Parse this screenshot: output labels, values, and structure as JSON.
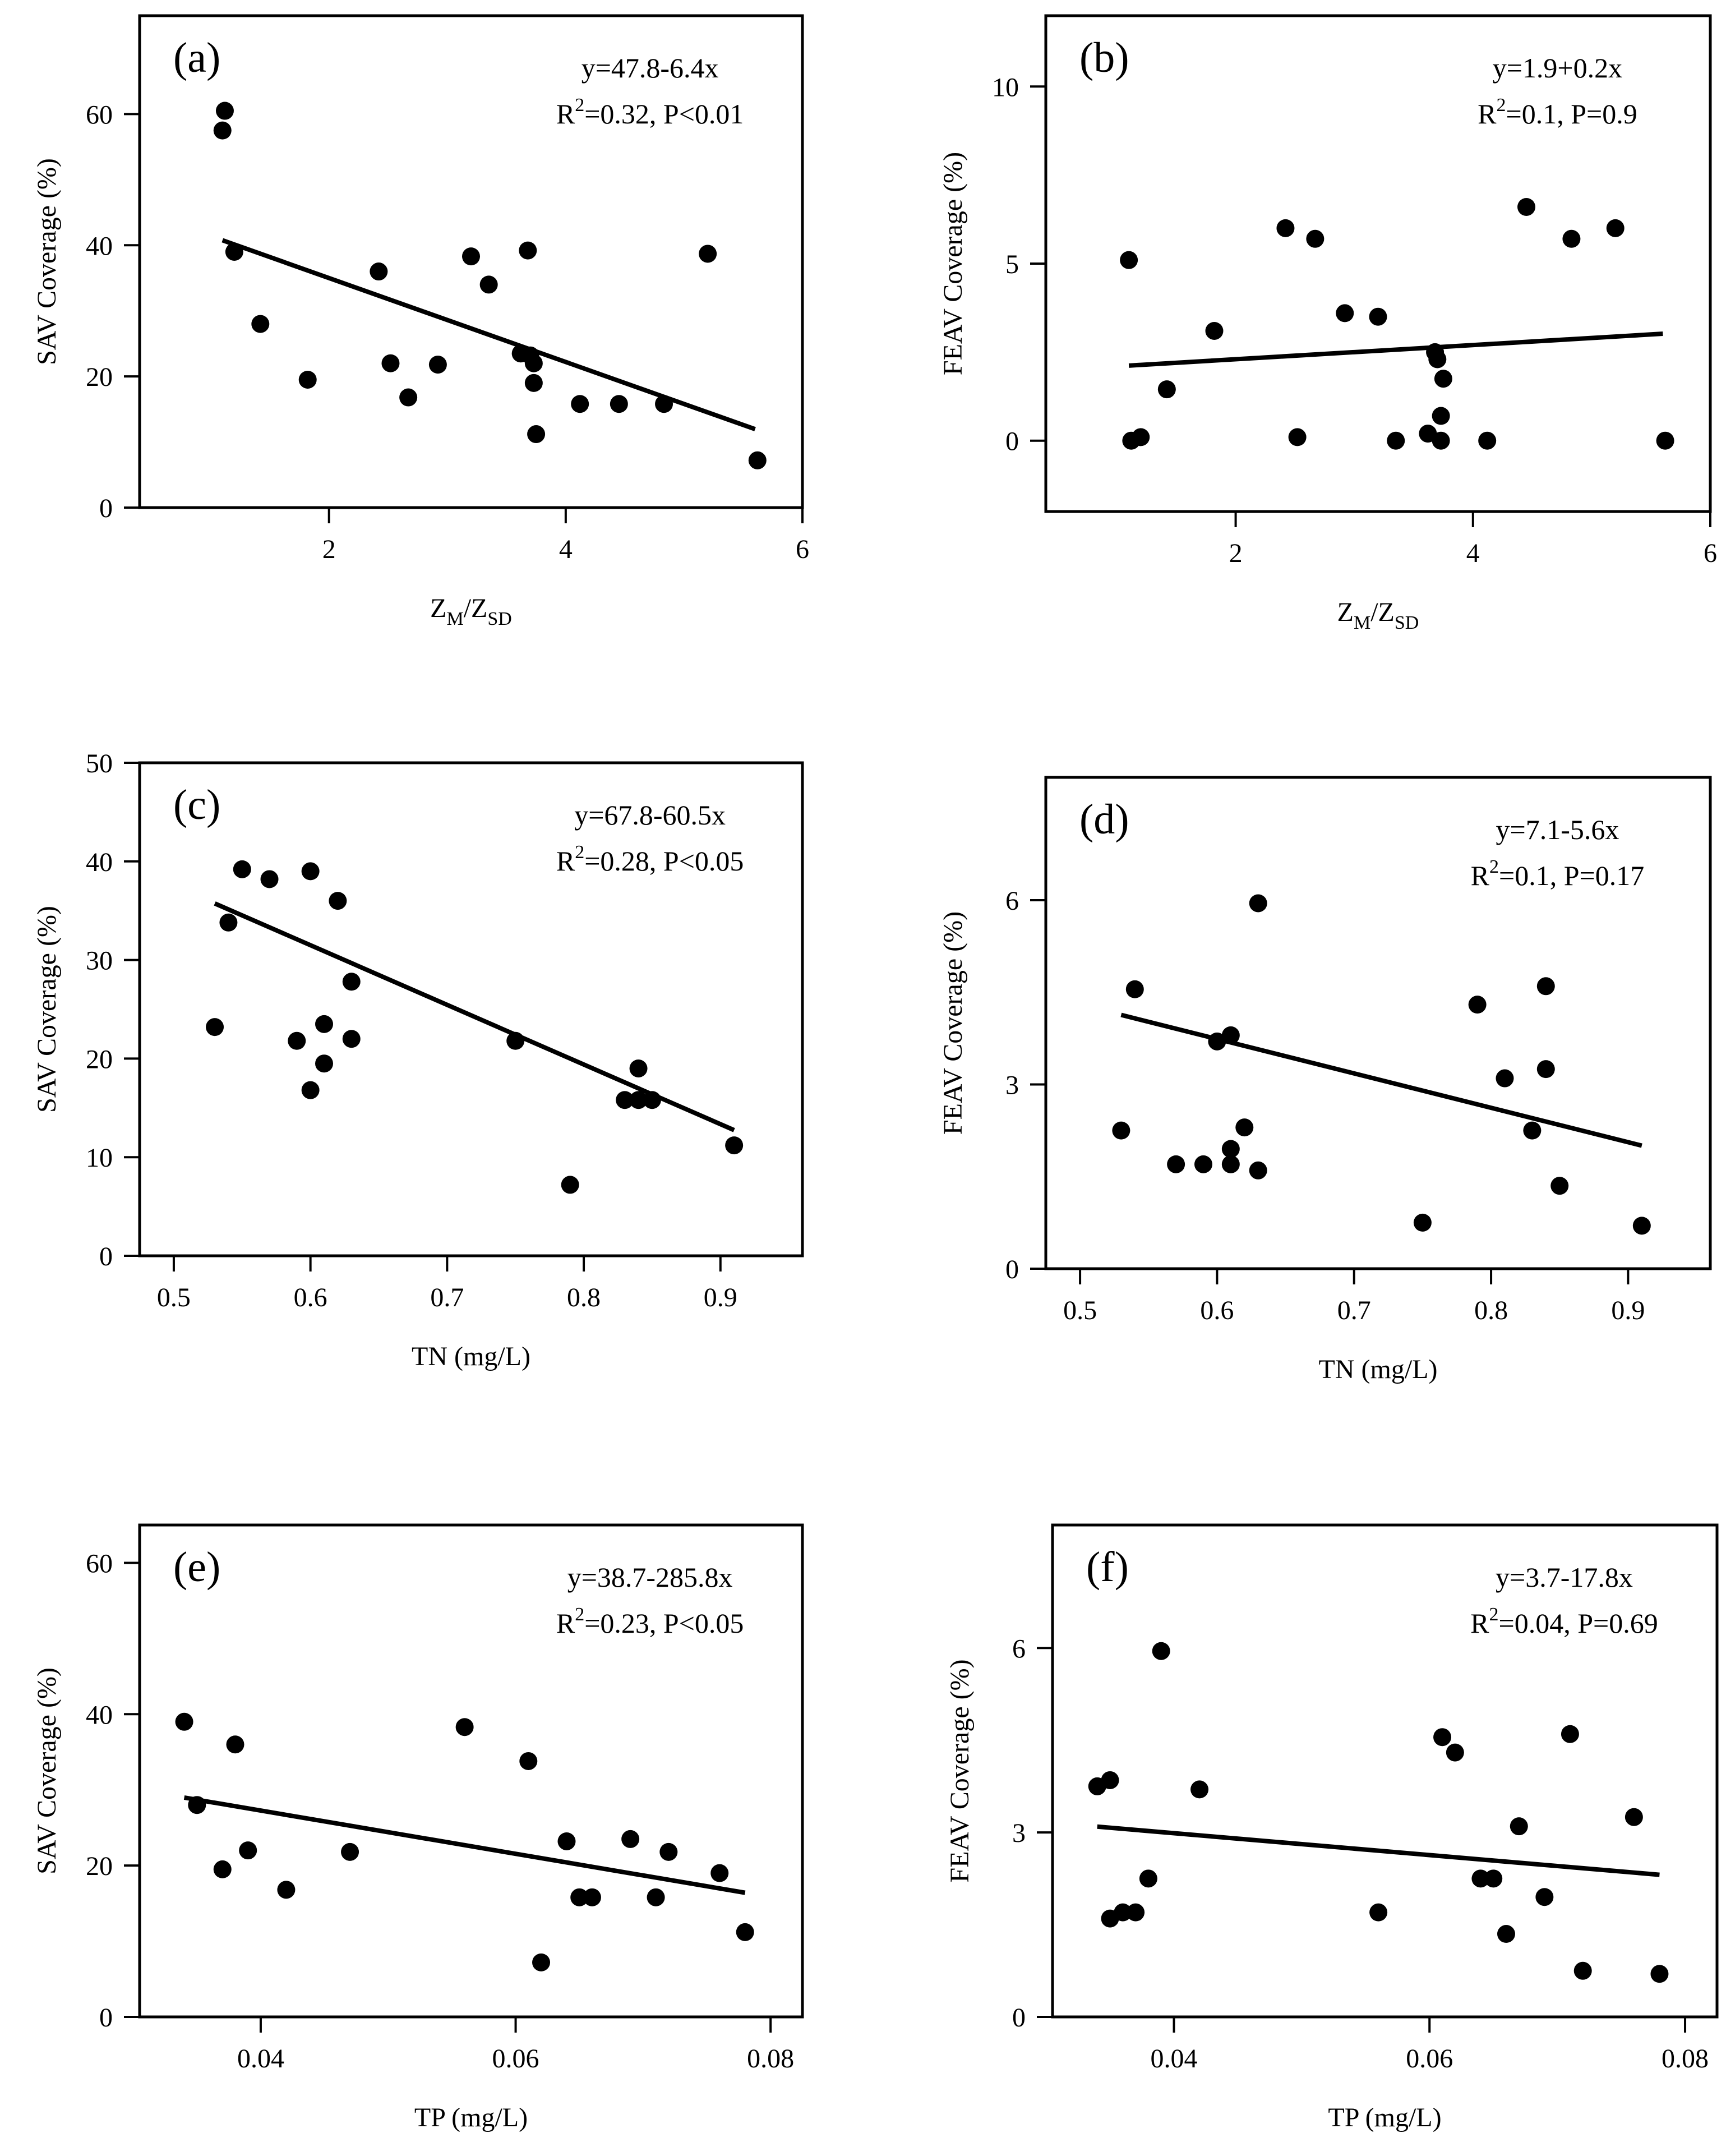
{
  "chart_data": [
    {
      "panel": "(a)",
      "type": "scatter",
      "xlabel": "Z_M/Z_SD",
      "ylabel": "SAV Coverage (%)",
      "xlim": [
        0.4,
        6.0
      ],
      "ylim": [
        0,
        75
      ],
      "xticks": [
        2,
        4,
        6
      ],
      "xticklabels": [
        "2",
        "4",
        "6"
      ],
      "yticks": [
        0,
        20,
        40,
        60
      ],
      "yticklabels": [
        "0",
        "20",
        "40",
        "60"
      ],
      "equation": "y=47.8-6.4x",
      "stats_r": "R",
      "stats_sup": "2",
      "stats_rest": "=0.32, P<0.01",
      "fit": {
        "intercept": 47.8,
        "slope": -6.4,
        "x_range": [
          1.1,
          5.6
        ]
      },
      "x": [
        1.1,
        1.12,
        1.2,
        1.42,
        1.82,
        2.42,
        2.52,
        2.67,
        2.92,
        3.2,
        3.35,
        3.62,
        3.68,
        3.7,
        3.73,
        3.73,
        3.75,
        4.12,
        4.45,
        4.83,
        5.2,
        5.62
      ],
      "y": [
        57.5,
        60.5,
        39.0,
        28.0,
        19.5,
        36.0,
        22.0,
        16.8,
        21.8,
        38.3,
        34.0,
        23.5,
        39.2,
        23.2,
        22.0,
        19.0,
        11.2,
        15.8,
        15.8,
        15.8,
        38.7,
        7.2
      ]
    },
    {
      "panel": "(b)",
      "type": "scatter",
      "xlabel": "Z_M/Z_SD",
      "ylabel": "FEAV Coverage (%)",
      "xlim": [
        0.4,
        6.0
      ],
      "ylim": [
        -2.0,
        12.0
      ],
      "xticks": [
        2,
        4,
        6
      ],
      "xticklabels": [
        "2",
        "4",
        "6"
      ],
      "yticks": [
        0,
        5,
        10
      ],
      "yticklabels": [
        "0",
        "5",
        "10"
      ],
      "equation": "y=1.9+0.2x",
      "stats_r": "R",
      "stats_sup": "2",
      "stats_rest": "=0.1, P=0.9",
      "fit": {
        "intercept": 1.9,
        "slope": 0.2,
        "x_range": [
          1.1,
          5.6
        ]
      },
      "x": [
        1.1,
        1.12,
        1.2,
        1.42,
        1.82,
        2.42,
        2.52,
        2.67,
        2.92,
        3.2,
        3.35,
        3.62,
        3.68,
        3.7,
        3.73,
        3.73,
        3.75,
        4.12,
        4.45,
        4.83,
        5.2,
        5.62
      ],
      "y": [
        5.1,
        0.0,
        0.1,
        1.45,
        3.1,
        6.0,
        0.1,
        5.7,
        3.6,
        3.5,
        0.0,
        0.2,
        2.5,
        2.3,
        0.7,
        0.0,
        1.75,
        0.0,
        6.6,
        5.7,
        6.0,
        0.0
      ]
    },
    {
      "panel": "(c)",
      "type": "scatter",
      "xlabel": "TN (mg/L)",
      "ylabel": "SAV Coverage (%)",
      "xlim": [
        0.475,
        0.96
      ],
      "ylim": [
        0,
        50
      ],
      "xticks": [
        0.5,
        0.6,
        0.7,
        0.8,
        0.9
      ],
      "xticklabels": [
        "0.5",
        "0.6",
        "0.7",
        "0.8",
        "0.9"
      ],
      "yticks": [
        0,
        10,
        20,
        30,
        40,
        50
      ],
      "yticklabels": [
        "0",
        "10",
        "20",
        "30",
        "40",
        "50"
      ],
      "equation": "y=67.8-60.5x",
      "stats_r": "R",
      "stats_sup": "2",
      "stats_rest": "=0.28, P<0.05",
      "fit": {
        "intercept": 67.8,
        "slope": -60.5,
        "x_range": [
          0.53,
          0.91
        ]
      },
      "x": [
        0.53,
        0.54,
        0.55,
        0.57,
        0.59,
        0.6,
        0.6,
        0.61,
        0.61,
        0.62,
        0.63,
        0.63,
        0.75,
        0.79,
        0.83,
        0.84,
        0.84,
        0.85,
        0.91
      ],
      "y": [
        23.2,
        33.8,
        39.2,
        38.2,
        21.8,
        39.0,
        16.8,
        23.5,
        19.5,
        36.0,
        27.8,
        22.0,
        21.8,
        7.2,
        15.8,
        19.0,
        15.8,
        15.8,
        11.2
      ]
    },
    {
      "panel": "(d)",
      "type": "scatter",
      "xlabel": "TN (mg/L)",
      "ylabel": "FEAV Coverage (%)",
      "xlim": [
        0.475,
        0.96
      ],
      "ylim": [
        0,
        8.0
      ],
      "xticks": [
        0.5,
        0.6,
        0.7,
        0.8,
        0.9
      ],
      "xticklabels": [
        "0.5",
        "0.6",
        "0.7",
        "0.8",
        "0.9"
      ],
      "yticks": [
        0,
        3,
        6
      ],
      "yticklabels": [
        "0",
        "3",
        "6"
      ],
      "equation": "y=7.1-5.6x",
      "stats_r": "R",
      "stats_sup": "2",
      "stats_rest": "=0.1, P=0.17",
      "fit": {
        "intercept": 7.1,
        "slope": -5.6,
        "x_range": [
          0.53,
          0.91
        ]
      },
      "x": [
        0.53,
        0.54,
        0.57,
        0.59,
        0.6,
        0.61,
        0.61,
        0.61,
        0.62,
        0.63,
        0.63,
        0.75,
        0.79,
        0.81,
        0.83,
        0.84,
        0.84,
        0.85,
        0.91
      ],
      "y": [
        2.25,
        4.55,
        1.7,
        1.7,
        3.7,
        3.8,
        1.95,
        1.7,
        2.3,
        5.95,
        1.6,
        0.75,
        4.3,
        3.1,
        2.25,
        4.6,
        3.25,
        1.35,
        0.7
      ]
    },
    {
      "panel": "(e)",
      "type": "scatter",
      "xlabel": "TP (mg/L)",
      "ylabel": "SAV Coverage (%)",
      "xlim": [
        0.0305,
        0.0825
      ],
      "ylim": [
        0,
        65
      ],
      "xticks": [
        0.04,
        0.06,
        0.08
      ],
      "xticklabels": [
        "0.04",
        "0.06",
        "0.08"
      ],
      "yticks": [
        0,
        20,
        40,
        60
      ],
      "yticklabels": [
        "0",
        "20",
        "40",
        "60"
      ],
      "equation": "y=38.7-285.8x",
      "stats_r": "R",
      "stats_sup": "2",
      "stats_rest": "=0.23, P<0.05",
      "fit": {
        "intercept": 38.7,
        "slope": -285.8,
        "x_range": [
          0.034,
          0.078
        ]
      },
      "x": [
        0.034,
        0.035,
        0.037,
        0.038,
        0.039,
        0.042,
        0.047,
        0.056,
        0.061,
        0.062,
        0.064,
        0.065,
        0.066,
        0.069,
        0.071,
        0.072,
        0.076,
        0.078
      ],
      "y": [
        39.0,
        28.0,
        19.5,
        36.0,
        22.0,
        16.8,
        21.8,
        38.3,
        33.8,
        7.2,
        23.2,
        15.8,
        15.8,
        23.5,
        15.8,
        21.8,
        19.0,
        11.2
      ]
    },
    {
      "panel": "(f)",
      "type": "scatter",
      "xlabel": "TP (mg/L)",
      "ylabel": "FEAV Coverage (%)",
      "xlim": [
        0.0305,
        0.0825
      ],
      "ylim": [
        0,
        8.0
      ],
      "xticks": [
        0.04,
        0.06,
        0.08
      ],
      "xticklabels": [
        "0.04",
        "0.06",
        "0.08"
      ],
      "yticks": [
        0,
        3,
        6
      ],
      "yticklabels": [
        "0",
        "3",
        "6"
      ],
      "equation": "y=3.7-17.8x",
      "stats_r": "R",
      "stats_sup": "2",
      "stats_rest": "=0.04, P=0.69",
      "fit": {
        "intercept": 3.7,
        "slope": -17.8,
        "x_range": [
          0.034,
          0.078
        ]
      },
      "x": [
        0.034,
        0.035,
        0.035,
        0.036,
        0.037,
        0.038,
        0.039,
        0.042,
        0.056,
        0.061,
        0.062,
        0.064,
        0.065,
        0.066,
        0.067,
        0.069,
        0.071,
        0.072,
        0.076,
        0.078
      ],
      "y": [
        3.75,
        1.6,
        3.85,
        1.7,
        1.7,
        2.25,
        5.95,
        3.7,
        1.7,
        4.55,
        4.3,
        2.25,
        2.25,
        1.35,
        3.1,
        1.95,
        4.6,
        0.75,
        3.25,
        0.7
      ]
    }
  ]
}
